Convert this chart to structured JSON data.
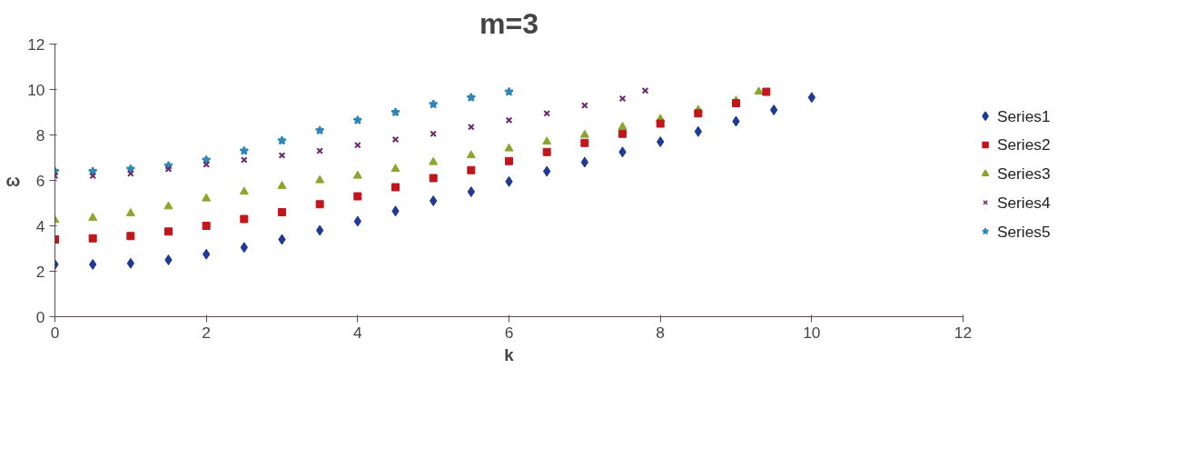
{
  "chart_data": {
    "type": "scatter",
    "title": "m=3",
    "xlabel": "k",
    "ylabel": "ω",
    "xlim": [
      0,
      12
    ],
    "ylim": [
      0,
      12
    ],
    "xticks": [
      0,
      2,
      4,
      6,
      8,
      10,
      12
    ],
    "yticks": [
      0,
      2,
      4,
      6,
      8,
      10,
      12
    ],
    "grid": false,
    "legend": "right",
    "series": [
      {
        "name": "Series1",
        "color": "#1f3a93",
        "marker": "diamond",
        "x": [
          0,
          0.5,
          1,
          1.5,
          2,
          2.5,
          3,
          3.5,
          4,
          4.5,
          5,
          5.5,
          6,
          6.5,
          7,
          7.5,
          8,
          8.5,
          9,
          9.5,
          10
        ],
        "values": [
          2.3,
          2.3,
          2.35,
          2.5,
          2.75,
          3.05,
          3.4,
          3.8,
          4.2,
          4.65,
          5.1,
          5.5,
          5.95,
          6.4,
          6.8,
          7.25,
          7.7,
          8.15,
          8.6,
          9.1,
          9.65
        ]
      },
      {
        "name": "Series2",
        "color": "#c0161c",
        "marker": "square",
        "x": [
          0,
          0.5,
          1,
          1.5,
          2,
          2.5,
          3,
          3.5,
          4,
          4.5,
          5,
          5.5,
          6,
          6.5,
          7,
          7.5,
          8,
          8.5,
          9,
          9.4
        ],
        "values": [
          3.4,
          3.45,
          3.55,
          3.75,
          4.0,
          4.3,
          4.6,
          4.95,
          5.3,
          5.7,
          6.1,
          6.45,
          6.85,
          7.25,
          7.65,
          8.05,
          8.5,
          8.95,
          9.4,
          9.9
        ]
      },
      {
        "name": "Series3",
        "color": "#8aa62b",
        "marker": "triangle",
        "x": [
          0,
          0.5,
          1,
          1.5,
          2,
          2.5,
          3,
          3.5,
          4,
          4.5,
          5,
          5.5,
          6,
          6.5,
          7,
          7.5,
          8,
          8.5,
          9,
          9.3
        ],
        "values": [
          4.25,
          4.35,
          4.55,
          4.85,
          5.2,
          5.5,
          5.75,
          6.0,
          6.2,
          6.5,
          6.8,
          7.1,
          7.4,
          7.7,
          8.0,
          8.35,
          8.7,
          9.1,
          9.5,
          9.9
        ]
      },
      {
        "name": "Series4",
        "color": "#6b2a6b",
        "marker": "cross",
        "x": [
          0,
          0.5,
          1,
          1.5,
          2,
          2.5,
          3,
          3.5,
          4,
          4.5,
          5,
          5.5,
          6,
          6.5,
          7,
          7.5,
          7.8
        ],
        "values": [
          6.2,
          6.2,
          6.3,
          6.5,
          6.7,
          6.9,
          7.1,
          7.3,
          7.55,
          7.8,
          8.05,
          8.35,
          8.65,
          8.95,
          9.3,
          9.6,
          9.95
        ]
      },
      {
        "name": "Series5",
        "color": "#2f86b8",
        "marker": "star",
        "x": [
          0,
          0.5,
          1,
          1.5,
          2,
          2.5,
          3,
          3.5,
          4,
          4.5,
          5,
          5.5,
          6
        ],
        "values": [
          6.4,
          6.4,
          6.5,
          6.65,
          6.9,
          7.3,
          7.75,
          8.2,
          8.65,
          9.0,
          9.35,
          9.65,
          9.9
        ]
      }
    ]
  }
}
